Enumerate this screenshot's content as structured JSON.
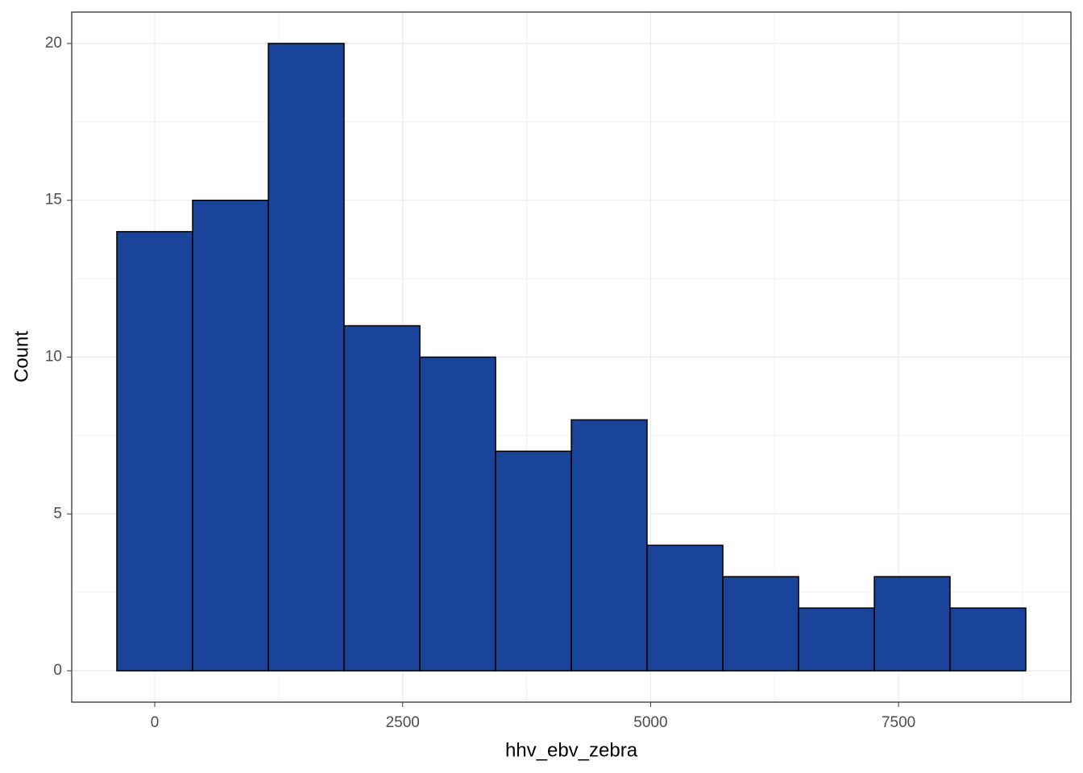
{
  "chart_data": {
    "type": "histogram",
    "x_label": "hhv_ebv_zebra",
    "y_label": "Count",
    "bins": [
      -382,
      382,
      1146,
      1909,
      2673,
      3437,
      4201,
      4964,
      5728,
      6492,
      7256,
      8019,
      8783
    ],
    "values": [
      14,
      15,
      20,
      11,
      10,
      7,
      8,
      4,
      3,
      2,
      3,
      2
    ],
    "color": "#1a4499",
    "edge_color": "#000000",
    "xlim": [
      -837,
      9238
    ],
    "xticks": [
      0,
      2500,
      5000,
      7500
    ],
    "ylim": [
      -1,
      21
    ],
    "yticks": [
      0,
      5,
      10,
      15,
      20
    ],
    "grid": true
  }
}
